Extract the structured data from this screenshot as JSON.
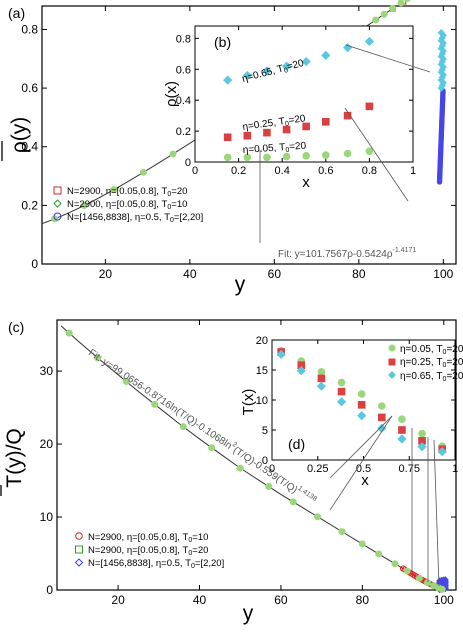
{
  "chart_data": [
    {
      "panel": "(a)",
      "type": "scatter",
      "xlabel": "y",
      "ylabel": "ρ(y)",
      "xlim": [
        5,
        103
      ],
      "ylim": [
        0,
        0.88
      ],
      "xticks": [
        "20",
        "40",
        "60",
        "80",
        "100"
      ],
      "yticks": [
        "0",
        "0.2",
        "0.4",
        "0.6",
        "0.8"
      ],
      "legend_position": "left",
      "series": [
        {
          "name": "N=2900, η=[0.05,0.8], T0=20",
          "label_main": "N=2900, η=[0.05,0.8], T",
          "label_sub": "0",
          "label_tail": "=20",
          "marker": "square-open",
          "color": "#d62728"
        },
        {
          "name": "N=2900, η=[0.05,0.8], T0=10",
          "label_main": "N=2900, η=[0.05,0.8], T",
          "label_sub": "0",
          "label_tail": "=10",
          "marker": "diamond-open",
          "color": "#2ca02c"
        },
        {
          "name": "N=[1456,8838], η=0.5, T0=[2,20]",
          "label_main": "N=[1456,8838], η=0.5, T",
          "label_sub": "0",
          "label_tail": "=[2,20]",
          "marker": "circle-open",
          "color": "#3b3bff"
        }
      ],
      "fit": {
        "label_main": "Fit: y=101.7567ρ-0.5424ρ",
        "label_sup": "-1.4171",
        "A": 101.7567,
        "B": 0.5424,
        "C": 1.4171
      },
      "green_points_y": [
        8,
        15,
        22,
        29,
        36,
        43,
        50,
        57,
        62,
        66,
        70,
        74,
        78,
        81,
        84,
        86,
        88,
        90,
        91.5,
        93,
        94.5,
        95.5,
        96.5,
        97.5,
        98.3,
        99,
        99.6,
        100
      ],
      "inset": {
        "panel": "(b)",
        "xlabel": "x",
        "ylabel": "ρ(x)",
        "xlim": [
          0,
          1
        ],
        "ylim": [
          0,
          0.88
        ],
        "xticks": [
          "0",
          "0.2",
          "0.4",
          "0.6",
          "0.8",
          "1"
        ],
        "yticks": [
          "0",
          "0.2",
          "0.4",
          "0.6",
          "0.8"
        ],
        "series": [
          {
            "label_main": "η=0.65, T",
            "label_sub": "0",
            "label_tail": "=20",
            "marker": "diamond",
            "color": "#5bc8e0",
            "x": [
              0.15,
              0.24,
              0.33,
              0.42,
              0.51,
              0.6,
              0.7,
              0.8
            ],
            "y": [
              0.53,
              0.56,
              0.59,
              0.62,
              0.65,
              0.69,
              0.74,
              0.78
            ]
          },
          {
            "label_main": "η=0.25, T",
            "label_sub": "0",
            "label_tail": "=20",
            "marker": "square",
            "color": "#d94040",
            "x": [
              0.15,
              0.24,
              0.33,
              0.42,
              0.51,
              0.6,
              0.7,
              0.8
            ],
            "y": [
              0.16,
              0.17,
              0.19,
              0.21,
              0.23,
              0.26,
              0.3,
              0.36
            ]
          },
          {
            "label_main": "η=0.05, T",
            "label_sub": "0",
            "label_tail": "=20",
            "marker": "circle",
            "color": "#9bd77a",
            "x": [
              0.15,
              0.24,
              0.33,
              0.42,
              0.51,
              0.6,
              0.7,
              0.8
            ],
            "y": [
              0.03,
              0.03,
              0.03,
              0.035,
              0.04,
              0.045,
              0.055,
              0.07
            ]
          }
        ]
      }
    },
    {
      "panel": "(c)",
      "type": "scatter",
      "xlabel": "y",
      "ylabel": "T(y)/Q",
      "xlim": [
        5,
        103
      ],
      "ylim": [
        0,
        37
      ],
      "xticks": [
        "20",
        "40",
        "60",
        "80",
        "100"
      ],
      "yticks": [
        "0",
        "10",
        "20",
        "30"
      ],
      "legend_position": "bottom-left",
      "series": [
        {
          "name": "N=2900, η=[0.05,0.8], T0=10",
          "label_main": "N=2900, η=[0.05,0.8], T",
          "label_sub": "0",
          "label_tail": "=10",
          "marker": "circle-open",
          "color": "#d62728"
        },
        {
          "name": "N=2900, η=[0.05,0.8], T0=20",
          "label_main": "N=2900, η=[0.05,0.8], T",
          "label_sub": "0",
          "label_tail": "=20",
          "marker": "square-open",
          "color": "#2ca02c"
        },
        {
          "name": "N=[1456,8838], η=0.5, T0=[2,20]",
          "label_main": "N=[1456,8838], η=0.5, T",
          "label_sub": "0",
          "label_tail": "=[2,20]",
          "marker": "diamond-open",
          "color": "#3b3bff"
        }
      ],
      "fit": {
        "label_main": "Fit: y=99.0656-0.8716ln(T/Q)-0.1068ln",
        "label_sup2": "2",
        "label_mid": "(T/Q)-0.559(T/Q)",
        "label_sup": "1.4138"
      },
      "curve": {
        "y": [
          6,
          10,
          15,
          20,
          25,
          30,
          35,
          40,
          45,
          50,
          55,
          60,
          65,
          70,
          75,
          80,
          85,
          88,
          91,
          94,
          96,
          97.5,
          98.5,
          99.3,
          100,
          100.5,
          101
        ],
        "t": [
          36.2,
          34.2,
          31.8,
          29.5,
          27.2,
          25.0,
          22.8,
          20.7,
          18.7,
          16.7,
          14.9,
          13.1,
          11.4,
          9.7,
          8.0,
          6.3,
          4.6,
          3.6,
          2.6,
          1.6,
          1.0,
          0.6,
          0.35,
          0.15,
          0.03,
          0.0,
          0.0
        ]
      },
      "green_points_y": [
        8,
        15,
        22,
        29,
        36,
        43,
        50,
        57,
        63,
        69,
        75,
        80,
        84,
        88,
        91,
        94,
        96,
        97.5,
        98.7,
        99.6
      ],
      "inset": {
        "panel": "(d)",
        "xlabel": "x",
        "ylabel": "T(x)",
        "xlim": [
          0,
          1
        ],
        "ylim": [
          0,
          20
        ],
        "xticks": [
          "0",
          "0.25",
          "0.5",
          "0.75",
          "1"
        ],
        "yticks": [
          "0",
          "5",
          "10",
          "15",
          "20"
        ],
        "series": [
          {
            "label_main": "η=0.05, T",
            "label_sub": "0",
            "label_tail": "=20",
            "marker": "circle",
            "color": "#9bd77a",
            "x": [
              0.05,
              0.16,
              0.27,
              0.38,
              0.49,
              0.6,
              0.71,
              0.82,
              0.93
            ],
            "y": [
              18.2,
              16.5,
              14.7,
              12.9,
              11.0,
              9.0,
              6.8,
              4.4,
              2.3
            ]
          },
          {
            "label_main": "η=0.25, T",
            "label_sub": "0",
            "label_tail": "=20",
            "marker": "square",
            "color": "#d94040",
            "x": [
              0.05,
              0.16,
              0.27,
              0.38,
              0.49,
              0.6,
              0.71,
              0.82,
              0.93
            ],
            "y": [
              18.0,
              15.8,
              13.6,
              11.4,
              9.2,
              7.1,
              5.0,
              3.2,
              1.8
            ]
          },
          {
            "label_main": "η=0.65, T",
            "label_sub": "0",
            "label_tail": "=20",
            "marker": "diamond",
            "color": "#5bc8e0",
            "x": [
              0.05,
              0.16,
              0.27,
              0.38,
              0.49,
              0.6,
              0.71,
              0.82,
              0.93
            ],
            "y": [
              17.6,
              14.9,
              12.3,
              9.7,
              7.4,
              5.3,
              3.5,
              2.2,
              1.4
            ]
          }
        ]
      }
    }
  ]
}
